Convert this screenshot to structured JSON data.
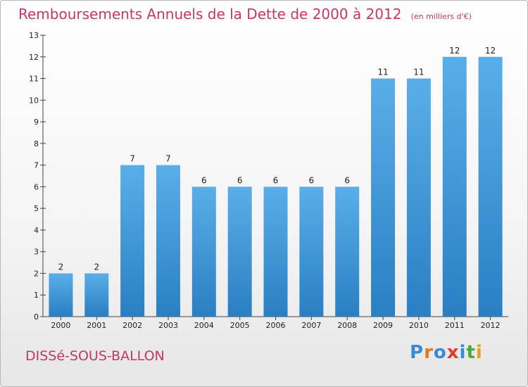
{
  "chart_data": {
    "type": "bar",
    "title": "Remboursements Annuels de la Dette de 2000 à 2012",
    "unit": "(en milliers d'€)",
    "categories": [
      "2000",
      "2001",
      "2002",
      "2003",
      "2004",
      "2005",
      "2006",
      "2007",
      "2008",
      "2009",
      "2010",
      "2011",
      "2012"
    ],
    "values": [
      2,
      2,
      7,
      7,
      6,
      6,
      6,
      6,
      6,
      11,
      11,
      12,
      12
    ],
    "ylim": [
      0,
      13
    ],
    "yticks": [
      0,
      1,
      2,
      3,
      4,
      5,
      6,
      7,
      8,
      9,
      10,
      11,
      12,
      13
    ],
    "grid": false,
    "bar_color_top": "#5aaee8",
    "bar_color_bottom": "#2a7fc3"
  },
  "commune": "DISSé-SOUS-BALLON",
  "logo": {
    "letters": [
      {
        "ch": "P",
        "color": "#3a8ad8"
      },
      {
        "ch": "r",
        "color": "#e07a1a"
      },
      {
        "ch": "o",
        "color": "#3a8ad8"
      },
      {
        "ch": "x",
        "color": "#e03a2a"
      },
      {
        "ch": "i",
        "color": "#3a8ad8"
      },
      {
        "ch": "t",
        "color": "#4aa83a"
      },
      {
        "ch": "i",
        "color": "#e0a21a"
      }
    ]
  }
}
